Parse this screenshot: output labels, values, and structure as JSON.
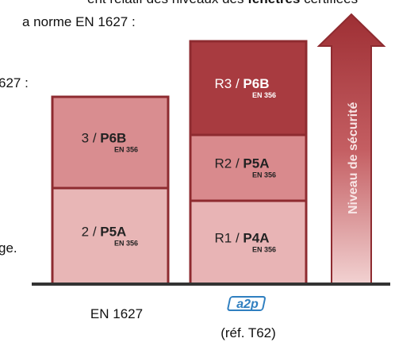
{
  "intro": {
    "line1": [
      "ent relatif des niveaux des ",
      "fenêtres",
      " certifiées"
    ],
    "line2": "a norme EN 1627 :"
  },
  "side_text": [
    "627 :",
    "ge."
  ],
  "columns": [
    {
      "label": "EN 1627",
      "levels": [
        {
          "prefix": "2 / ",
          "class": "P5A",
          "standard": "EN 356"
        },
        {
          "prefix": "3 / ",
          "class": "P6B",
          "standard": "EN 356"
        }
      ]
    },
    {
      "logo": "a2p",
      "label": "(réf. T62)",
      "levels": [
        {
          "prefix": "R1 / ",
          "class": "P4A",
          "standard": "EN 356"
        },
        {
          "prefix": "R2 / ",
          "class": "P5A",
          "standard": "EN 356"
        },
        {
          "prefix": "R3 / ",
          "class": "P6B",
          "standard": "EN 356"
        }
      ]
    }
  ],
  "arrow_label": "Niveau de sécurité"
}
